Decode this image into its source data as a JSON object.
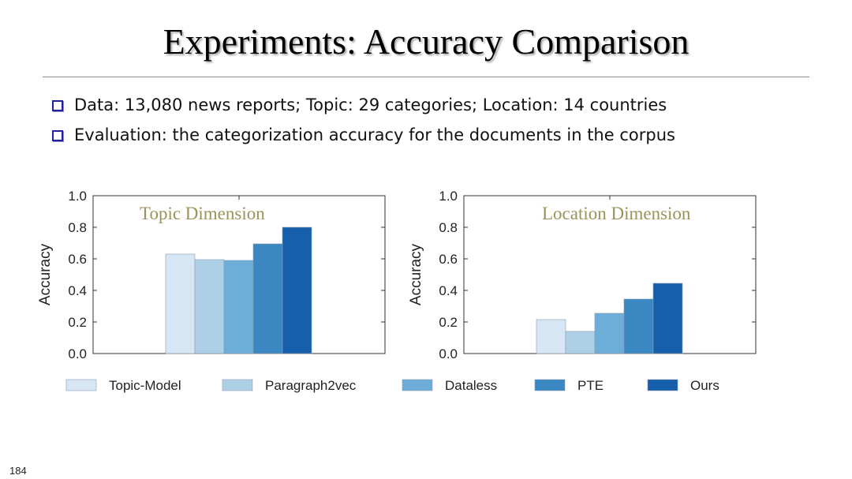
{
  "slide": {
    "title": "Experiments: Accuracy Comparison",
    "bullets": [
      "Data: 13,080 news reports; Topic: 29 categories; Location: 14 countries",
      "Evaluation: the categorization accuracy for the documents in the corpus"
    ],
    "page_number": "184",
    "bullet_color": "#1f1fa0"
  },
  "chart_data": [
    {
      "type": "bar",
      "title": "Topic Dimension",
      "ylabel": "Accuracy",
      "ylim": [
        0,
        1.0
      ],
      "yticks": [
        "0.0",
        "0.2",
        "0.4",
        "0.6",
        "0.8",
        "1.0"
      ],
      "series": [
        {
          "name": "Topic-Model",
          "values": [
            0.63
          ]
        },
        {
          "name": "Paragraph2vec",
          "values": [
            0.595
          ]
        },
        {
          "name": "Dataless",
          "values": [
            0.59
          ]
        },
        {
          "name": "PTE",
          "values": [
            0.695
          ]
        },
        {
          "name": "Ours",
          "values": [
            0.8
          ]
        }
      ]
    },
    {
      "type": "bar",
      "title": "Location Dimension",
      "ylabel": "Accuracy",
      "ylim": [
        0,
        1.0
      ],
      "yticks": [
        "0.0",
        "0.2",
        "0.4",
        "0.6",
        "0.8",
        "1.0"
      ],
      "series": [
        {
          "name": "Topic-Model",
          "values": [
            0.215
          ]
        },
        {
          "name": "Paragraph2vec",
          "values": [
            0.14
          ]
        },
        {
          "name": "Dataless",
          "values": [
            0.255
          ]
        },
        {
          "name": "PTE",
          "values": [
            0.345
          ]
        },
        {
          "name": "Ours",
          "values": [
            0.445
          ]
        }
      ]
    }
  ],
  "legend": {
    "items": [
      "Topic-Model",
      "Paragraph2vec",
      "Dataless",
      "PTE",
      "Ours"
    ],
    "colors": [
      "#d7e6f4",
      "#aed0e6",
      "#6caed8",
      "#3a87c2",
      "#1660ab"
    ],
    "placement": "bottom"
  }
}
